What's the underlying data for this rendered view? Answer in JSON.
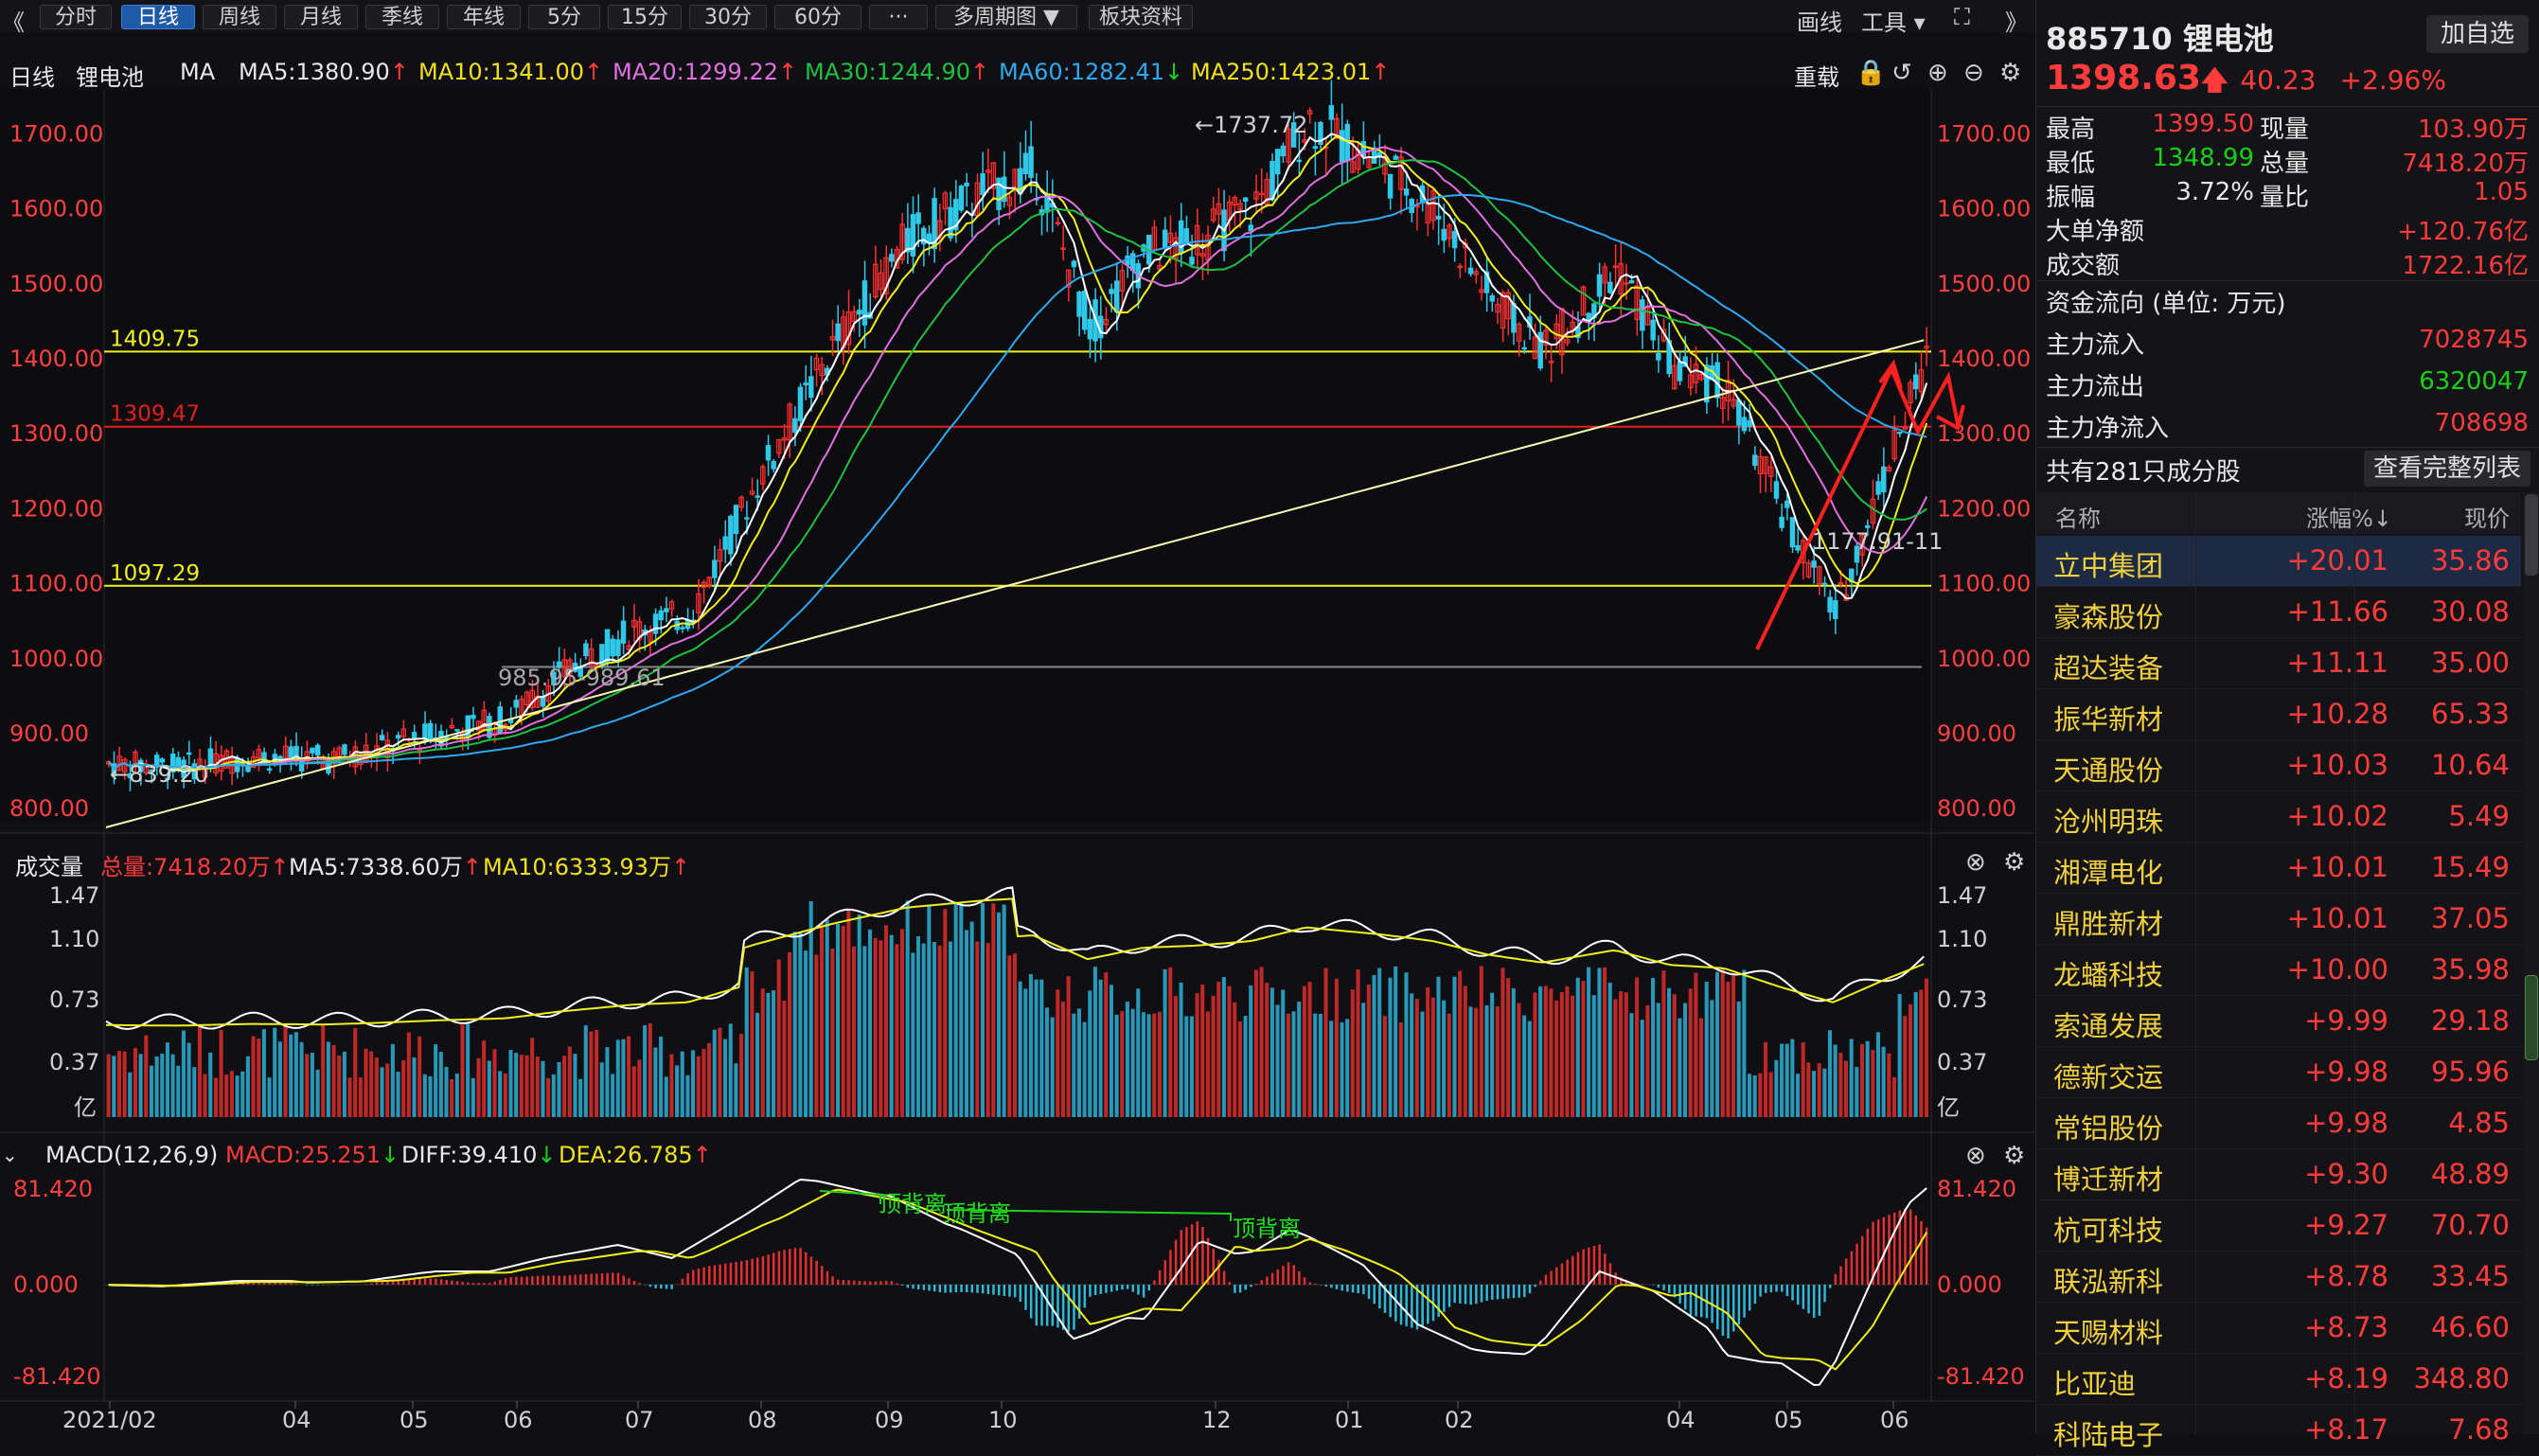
{
  "toolbar": {
    "back": "《",
    "buttons": [
      "分时",
      "日线",
      "周线",
      "月线",
      "季线",
      "年线",
      "5分",
      "15分",
      "30分",
      "60分",
      "···",
      "多周期图 ▼",
      "板块资料"
    ],
    "active": 1,
    "draw": "画线",
    "tools": "工具 ▾",
    "fullscreen": "⛶",
    "forward": "》"
  },
  "ma_line": {
    "period": "日线",
    "name": "锂电池",
    "ma": "MA",
    "ma5": "MA5:1380.90",
    "ma10": "MA10:1341.00",
    "ma20": "MA20:1299.22",
    "ma30": "MA30:1244.90",
    "ma60": "MA60:1282.41",
    "ma250": "MA250:1423.01",
    "arrows": {
      "ma5": "↑",
      "ma10": "↑",
      "ma20": "↑",
      "ma30": "↑",
      "ma60": "↓",
      "ma250": "↑"
    },
    "reload": "重载"
  },
  "vol_line": {
    "label": "成交量",
    "total": "总量:7418.20万",
    "ma5": "MA5:7338.60万",
    "ma10": "MA10:6333.93万",
    "arrows": {
      "total": "↑",
      "ma5": "↑",
      "ma10": "↑"
    }
  },
  "macd_line": {
    "label": "MACD(12,26,9)",
    "macd": "MACD:25.251",
    "diff": "DIFF:39.410",
    "dea": "DEA:26.785",
    "arrows": {
      "macd": "↓",
      "diff": "↓",
      "dea": "↑"
    }
  },
  "chart_data": {
    "type": "candlestick",
    "price_axis": {
      "ticks": [
        "1700.00",
        "1600.00",
        "1500.00",
        "1400.00",
        "1300.00",
        "1200.00",
        "1100.00",
        "1000.00",
        "900.00",
        "800.00"
      ],
      "ylim": [
        780,
        1760
      ]
    },
    "price_levels": [
      {
        "label": "1409.75",
        "value": 1409.75,
        "color": "#f0f020"
      },
      {
        "label": "1309.47",
        "value": 1309.47,
        "color": "#e02020"
      },
      {
        "label": "1097.29",
        "value": 1097.29,
        "color": "#f0f020"
      }
    ],
    "annotations": {
      "high": "1737.72",
      "low": "839.20",
      "range1": "985.95-989.61",
      "range2": "1177.91-11"
    },
    "x_ticks": [
      "2021/02",
      "04",
      "05",
      "06",
      "07",
      "08",
      "09",
      "10",
      "12",
      "01",
      "02",
      "04",
      "05",
      "06"
    ],
    "volume_axis": {
      "ticks": [
        "1.47",
        "1.10",
        "0.73",
        "0.37"
      ],
      "unit": "亿"
    },
    "macd_axis": {
      "ticks": [
        "81.420",
        "0.000",
        "-81.420"
      ]
    },
    "divergence_labels": [
      "顶背离",
      "顶背离",
      "顶背离"
    ],
    "key_prices": [
      {
        "x": 0.0,
        "y": 860
      },
      {
        "x": 0.04,
        "y": 855
      },
      {
        "x": 0.08,
        "y": 870
      },
      {
        "x": 0.12,
        "y": 865
      },
      {
        "x": 0.15,
        "y": 880
      },
      {
        "x": 0.18,
        "y": 900
      },
      {
        "x": 0.22,
        "y": 920
      },
      {
        "x": 0.25,
        "y": 980
      },
      {
        "x": 0.29,
        "y": 1040
      },
      {
        "x": 0.32,
        "y": 1060
      },
      {
        "x": 0.36,
        "y": 1250
      },
      {
        "x": 0.4,
        "y": 1420
      },
      {
        "x": 0.44,
        "y": 1560
      },
      {
        "x": 0.48,
        "y": 1620
      },
      {
        "x": 0.51,
        "y": 1650
      },
      {
        "x": 0.54,
        "y": 1440
      },
      {
        "x": 0.57,
        "y": 1540
      },
      {
        "x": 0.6,
        "y": 1560
      },
      {
        "x": 0.63,
        "y": 1600
      },
      {
        "x": 0.66,
        "y": 1720
      },
      {
        "x": 0.7,
        "y": 1660
      },
      {
        "x": 0.73,
        "y": 1600
      },
      {
        "x": 0.76,
        "y": 1480
      },
      {
        "x": 0.79,
        "y": 1410
      },
      {
        "x": 0.83,
        "y": 1520
      },
      {
        "x": 0.86,
        "y": 1390
      },
      {
        "x": 0.89,
        "y": 1360
      },
      {
        "x": 0.92,
        "y": 1200
      },
      {
        "x": 0.95,
        "y": 1060
      },
      {
        "x": 0.98,
        "y": 1270
      },
      {
        "x": 1.0,
        "y": 1398
      }
    ]
  },
  "quote": {
    "code": "885710",
    "name": "锂电池",
    "add_btn": "加自选",
    "price": "1398.63",
    "arrow": "🡅",
    "change": "40.23",
    "pct": "+2.96%",
    "rows": [
      {
        "l1": "最高",
        "v1": "1399.50",
        "l2": "现量",
        "v2": "103.90万",
        "c1": "red"
      },
      {
        "l1": "最低",
        "v1": "1348.99",
        "l2": "总量",
        "v2": "7418.20万",
        "c1": "green"
      },
      {
        "l1": "振幅",
        "v1": "3.72%",
        "l2": "量比",
        "v2": "1.05",
        "c1": "white"
      }
    ],
    "big_net_label": "大单净额",
    "big_net": "+120.76亿",
    "turnover_label": "成交额",
    "turnover": "1722.16亿",
    "flow_title": "资金流向 (单位: 万元)",
    "flows": [
      {
        "label": "主力流入",
        "value": "7028745",
        "color": "red"
      },
      {
        "label": "主力流出",
        "value": "6320047",
        "color": "green"
      },
      {
        "label": "主力净流入",
        "value": "708698",
        "color": "red"
      }
    ],
    "constituents": "共有281只成分股",
    "view_all": "查看完整列表"
  },
  "stock_list": {
    "headers": [
      "名称",
      "涨幅%↓",
      "现价"
    ],
    "rows": [
      {
        "name": "立中集团",
        "pct": "+20.01",
        "price": "35.86"
      },
      {
        "name": "豪森股份",
        "pct": "+11.66",
        "price": "30.08"
      },
      {
        "name": "超达装备",
        "pct": "+11.11",
        "price": "35.00"
      },
      {
        "name": "振华新材",
        "pct": "+10.28",
        "price": "65.33"
      },
      {
        "name": "天通股份",
        "pct": "+10.03",
        "price": "10.64"
      },
      {
        "name": "沧州明珠",
        "pct": "+10.02",
        "price": "5.49"
      },
      {
        "name": "湘潭电化",
        "pct": "+10.01",
        "price": "15.49"
      },
      {
        "name": "鼎胜新材",
        "pct": "+10.01",
        "price": "37.05"
      },
      {
        "name": "龙蟠科技",
        "pct": "+10.00",
        "price": "35.98"
      },
      {
        "name": "索通发展",
        "pct": "+9.99",
        "price": "29.18"
      },
      {
        "name": "德新交运",
        "pct": "+9.98",
        "price": "95.96"
      },
      {
        "name": "常铝股份",
        "pct": "+9.98",
        "price": "4.85"
      },
      {
        "name": "博迁新材",
        "pct": "+9.30",
        "price": "48.89"
      },
      {
        "name": "杭可科技",
        "pct": "+9.27",
        "price": "70.70"
      },
      {
        "name": "联泓新科",
        "pct": "+8.78",
        "price": "33.45"
      },
      {
        "name": "天赐材料",
        "pct": "+8.73",
        "price": "46.60"
      },
      {
        "name": "比亚迪",
        "pct": "+8.19",
        "price": "348.80"
      },
      {
        "name": "科陆电子",
        "pct": "+8.17",
        "price": "7.68"
      }
    ]
  }
}
